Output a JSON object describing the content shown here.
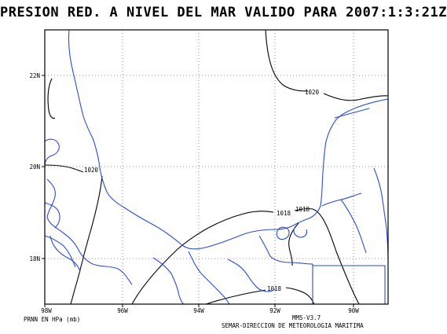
{
  "title": "PRESION RED. A NIVEL DEL MAR VALIDO PARA 2007:1:3:21Z",
  "footer": {
    "units": "PRNN EN HPa (mb)",
    "version": "MM5-V3.7",
    "agency": "SEMAR-DIRECCION DE METEOROLOGIA MARITIMA"
  },
  "axes": {
    "lon_labels": [
      "98W",
      "96W",
      "94W",
      "92W",
      "90W"
    ],
    "lat_labels": [
      "22N",
      "20N",
      "18N"
    ]
  },
  "isobars": {
    "labels": [
      "1020",
      "1020",
      "1018",
      "1018",
      "1018"
    ]
  },
  "colors": {
    "coastline": "#2a4cd6",
    "isobar": "#000000",
    "grid": "#6e6e6e",
    "background": "#ffffff"
  }
}
